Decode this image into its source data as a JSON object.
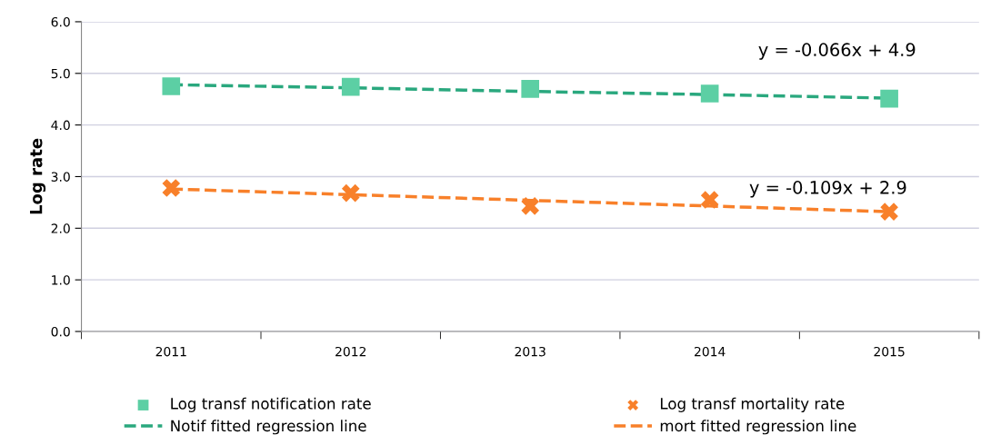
{
  "chart_data": {
    "type": "scatter",
    "ylabel": "Log rate",
    "categories": [
      "2011",
      "2012",
      "2013",
      "2014",
      "2015"
    ],
    "series": [
      {
        "name": "Log transf notification rate",
        "marker": "square",
        "color": "#5ccfa4",
        "values": [
          4.75,
          4.74,
          4.7,
          4.61,
          4.51
        ]
      },
      {
        "name": "Notif fitted regression line",
        "type": "line",
        "line_style": "dashed",
        "marker": "none",
        "color": "#2aa87e",
        "values": [
          4.78,
          4.72,
          4.65,
          4.59,
          4.52
        ]
      },
      {
        "name": "Log transf mortality rate",
        "marker": "cross",
        "color": "#f8802a",
        "values": [
          2.78,
          2.68,
          2.43,
          2.55,
          2.32
        ]
      },
      {
        "name": "mort fitted regression line",
        "type": "line",
        "line_style": "dashed",
        "marker": "none",
        "color": "#f8802a",
        "values": [
          2.76,
          2.65,
          2.54,
          2.43,
          2.32
        ]
      }
    ],
    "annotations": [
      "y = -0.066x + 4.9",
      "y = -0.109x + 2.9"
    ],
    "ylim": [
      0,
      6
    ],
    "yticks": [
      {
        "value": 0,
        "label": "0.0"
      },
      {
        "value": 1,
        "label": "1.0"
      },
      {
        "value": 2,
        "label": "2.0"
      },
      {
        "value": 3,
        "label": "3.0"
      },
      {
        "value": 4,
        "label": "4.0"
      },
      {
        "value": 5,
        "label": "5.0"
      },
      {
        "value": 6,
        "label": "6.0"
      }
    ],
    "grid": "y",
    "legend": "bottom"
  }
}
